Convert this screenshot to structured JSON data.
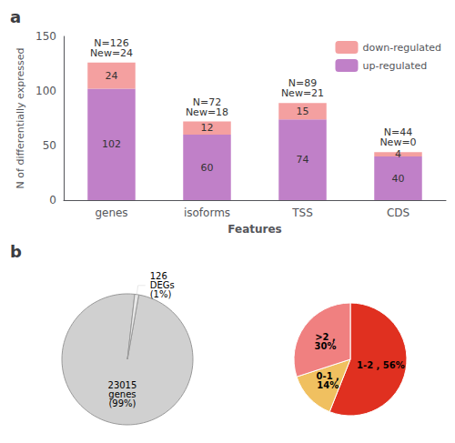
{
  "chart_data": [
    {
      "type": "bar",
      "title": "a",
      "categories": [
        "genes",
        "isoforms",
        "TSS",
        "CDS"
      ],
      "xlabel": "Features",
      "ylabel": "N of differentially expressed",
      "ylim": [
        0,
        150
      ],
      "yticks": [
        0,
        50,
        100,
        150
      ],
      "stacked": true,
      "data_labels": true,
      "grid": false,
      "legend": "upper right",
      "series": [
        {
          "name": "up-regulated",
          "color": "#C080C8",
          "values": [
            102,
            60,
            74,
            40
          ]
        },
        {
          "name": "down-regulated",
          "color": "#F4A0A0",
          "values": [
            24,
            12,
            15,
            4
          ]
        }
      ],
      "annotations": [
        {
          "category": "genes",
          "lines": [
            "N=126",
            "New=24"
          ]
        },
        {
          "category": "isoforms",
          "lines": [
            "N=72",
            "New=18"
          ]
        },
        {
          "category": "TSS",
          "lines": [
            "N=89",
            "New=21"
          ]
        },
        {
          "category": "CDS",
          "lines": [
            "N=44",
            "New=0"
          ]
        }
      ]
    },
    {
      "type": "pie",
      "title": "b",
      "values": [
        99,
        1
      ],
      "value_labels": [
        "23015\ngenes\n(99%)",
        "126\nDEGs\n(1%)"
      ],
      "colors": [
        "#D0D0D0",
        "#E8E8E8"
      ]
    },
    {
      "type": "pie",
      "values": [
        56,
        14,
        30
      ],
      "value_labels": [
        "1-2 , 56%",
        "0-1 ,\n14%",
        ">2 ,\n30%"
      ],
      "colors": [
        "#E03020",
        "#F0C060",
        "#F08080"
      ]
    }
  ]
}
